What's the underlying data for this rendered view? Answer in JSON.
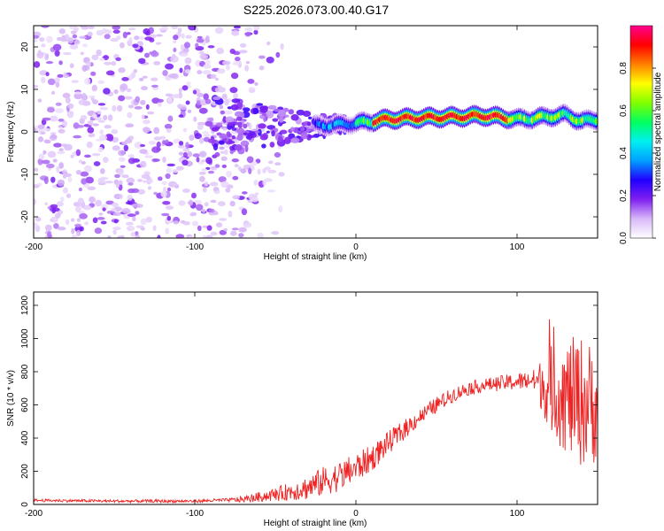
{
  "title": "S225.2026.073.00.40.G17",
  "chart_data": [
    {
      "type": "heatmap",
      "name": "spectrogram",
      "xlabel": "Height of straight line (km)",
      "ylabel": "Frequency (Hz)",
      "xlim": [
        -200,
        150
      ],
      "ylim": [
        -25,
        25
      ],
      "xticks": [
        -200,
        -100,
        0,
        100
      ],
      "yticks": [
        -20,
        -10,
        0,
        10,
        20
      ],
      "colorbar": {
        "label": "Normalized spectral amplitude",
        "range": [
          0,
          1
        ],
        "ticks": [
          0.0,
          0.2,
          0.4,
          0.6,
          0.8
        ],
        "colormap": [
          "#ffffff",
          "#d8b8f8",
          "#8020f0",
          "#2000ff",
          "#00a0ff",
          "#00f0f0",
          "#00ff60",
          "#80ff00",
          "#ffff00",
          "#ff8000",
          "#ff0000",
          "#ff0090"
        ]
      },
      "ridge": {
        "x": [
          -20,
          0,
          20,
          40,
          60,
          80,
          100,
          110,
          120,
          130,
          140,
          150
        ],
        "y": [
          1.5,
          2.0,
          3.0,
          3.3,
          3.5,
          3.8,
          3.0,
          3.2,
          3.6,
          4.0,
          2.5,
          3.0
        ],
        "peak_x_range": [
          10,
          95
        ]
      },
      "noise_region_x": [
        -200,
        -60
      ]
    },
    {
      "type": "line",
      "name": "snr",
      "xlabel": "Height of straight line (km)",
      "ylabel": "SNR (10 * v/v)",
      "xlim": [
        -200,
        150
      ],
      "ylim": [
        0,
        1280
      ],
      "xticks": [
        -200,
        -100,
        0,
        100
      ],
      "yticks": [
        0,
        200,
        400,
        600,
        800,
        1000,
        1200
      ],
      "color": "#ee2222",
      "trend": {
        "x": [
          -200,
          -150,
          -100,
          -70,
          -50,
          -30,
          -20,
          -10,
          0,
          10,
          20,
          30,
          40,
          50,
          60,
          70,
          80,
          90,
          100,
          110,
          120,
          130,
          140,
          150
        ],
        "y": [
          25,
          20,
          20,
          30,
          60,
          100,
          140,
          170,
          220,
          280,
          370,
          450,
          530,
          600,
          660,
          700,
          720,
          730,
          740,
          750,
          700,
          650,
          620,
          600
        ]
      },
      "noise_amplitude": {
        "x": [
          -200,
          -80,
          -50,
          -20,
          0,
          40,
          80,
          110,
          120,
          130,
          140,
          150
        ],
        "y": [
          8,
          10,
          40,
          90,
          90,
          50,
          40,
          60,
          250,
          350,
          400,
          350
        ]
      }
    }
  ]
}
